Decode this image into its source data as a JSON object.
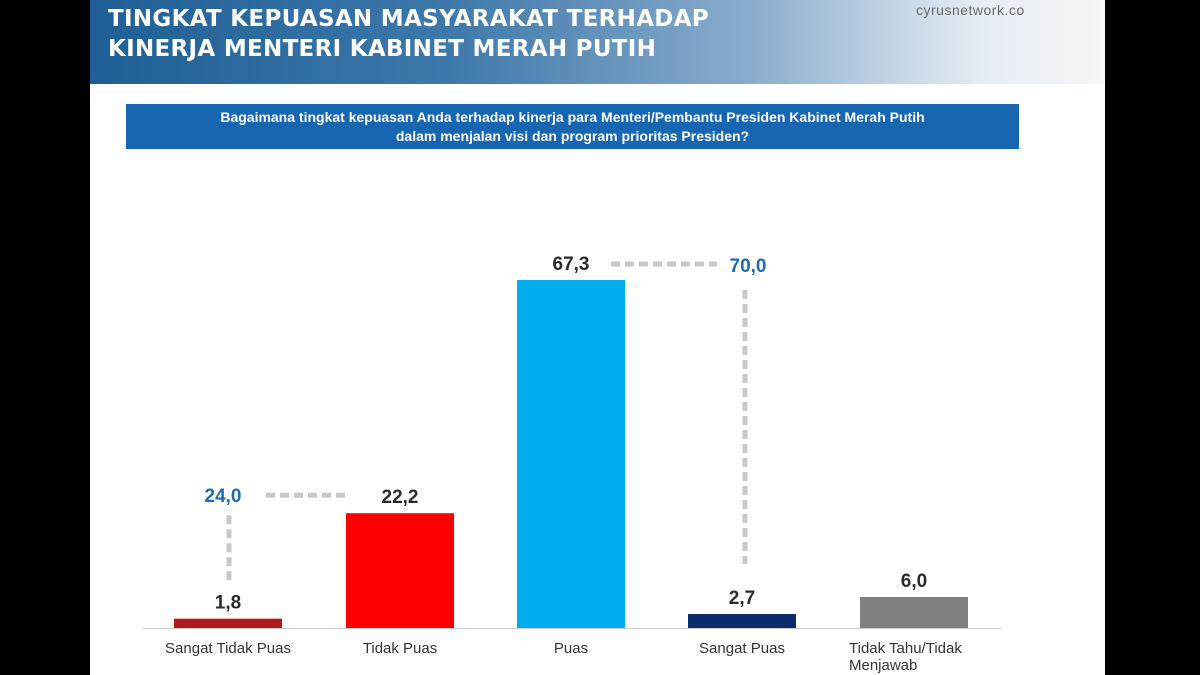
{
  "header": {
    "title_line_1": "TINGKAT KEPUASAN MASYARAKAT TERHADAP",
    "title_line_2": "KINERJA MENTERI KABINET MERAH PUTIH",
    "source": "cyrusnetwork.co"
  },
  "question": {
    "line_1": "Bagaimana tingkat kepuasan Anda terhadap kinerja para Menteri/Pembantu Presiden Kabinet Merah Putih",
    "line_2": "dalam menjalan visi dan program prioritas Presiden?"
  },
  "chart_data": {
    "type": "bar",
    "categories": [
      "Sangat Tidak Puas",
      "Tidak Puas",
      "Puas",
      "Sangat Puas",
      "Tidak Tahu/Tidak Menjawab"
    ],
    "values": [
      1.8,
      22.2,
      67.3,
      2.7,
      6.0
    ],
    "value_labels": [
      "1,8",
      "22,2",
      "67,3",
      "2,7",
      "6,0"
    ],
    "colors": [
      "#b01a1a",
      "#ff0000",
      "#00aeef",
      "#0b2a6b",
      "#808080"
    ],
    "ylim": [
      0,
      70
    ],
    "grid": false,
    "aggregates": [
      {
        "label": "24,0",
        "value": 24.0,
        "categories": [
          "Sangat Tidak Puas",
          "Tidak Puas"
        ]
      },
      {
        "label": "70,0",
        "value": 70.0,
        "categories": [
          "Puas",
          "Sangat Puas"
        ]
      }
    ],
    "aggregate_color": "#1e6bb0",
    "connector_color": "#c8c8c8"
  }
}
